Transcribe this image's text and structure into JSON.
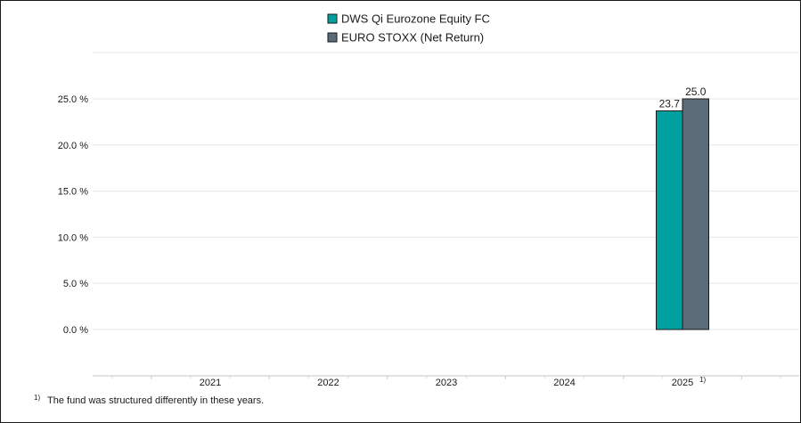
{
  "chart_data": {
    "type": "bar",
    "categories": [
      "2021",
      "2022",
      "2023",
      "2024",
      "2025"
    ],
    "category_notes": [
      "",
      "",
      "",
      "",
      "1)"
    ],
    "series": [
      {
        "name": "DWS Qi Eurozone Equity FC",
        "color": "#00a0a0",
        "values": [
          null,
          null,
          null,
          null,
          23.7
        ],
        "labels": [
          "",
          "",
          "",
          "",
          "23.7"
        ]
      },
      {
        "name": "EURO STOXX (Net Return)",
        "color": "#5b6b78",
        "values": [
          null,
          null,
          null,
          null,
          25.0
        ],
        "labels": [
          "",
          "",
          "",
          "",
          "25.0"
        ]
      }
    ],
    "y_ticks": [
      0,
      5,
      10,
      15,
      20,
      25
    ],
    "y_tick_labels": [
      "0.0 %",
      "5.0 %",
      "10.0 %",
      "15.0 %",
      "20.0 %",
      "25.0 %"
    ],
    "ylim": [
      -10,
      30
    ],
    "grid": true,
    "legend_position": "top-center",
    "title": "",
    "xlabel": "",
    "ylabel": ""
  },
  "footnote": {
    "marker": "1)",
    "text": "The fund was structured differently in these years."
  }
}
